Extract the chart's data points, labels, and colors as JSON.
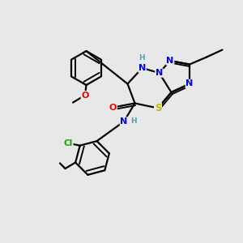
{
  "bg_color": "#e8e8e8",
  "atom_colors": {
    "C": "#000000",
    "N": "#0000ee",
    "O": "#ee0000",
    "S": "#bbbb00",
    "Cl": "#00aa00",
    "H": "#44aaaa"
  },
  "bond_color": "#000000",
  "line_width": 1.6
}
